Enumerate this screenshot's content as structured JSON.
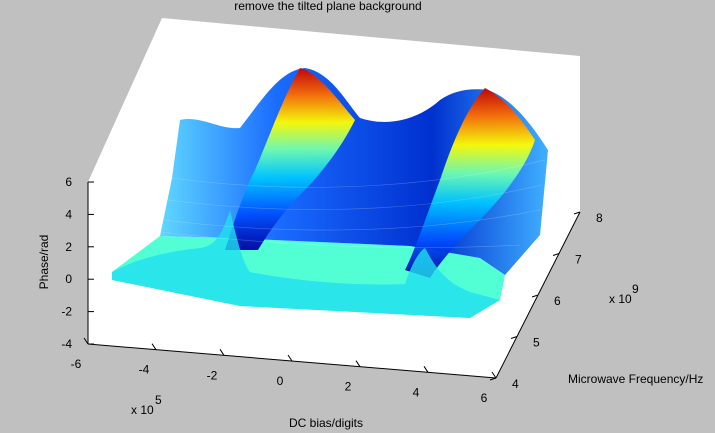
{
  "chart_data": {
    "type": "surface3d",
    "title": "remove the tilted plane background",
    "xlabel": "DC bias/digits",
    "x_exponent": "x 10",
    "x_exponent_power": "5",
    "ylabel": "Microwave Frequency/Hz",
    "y_exponent": "x 10",
    "y_exponent_power": "9",
    "zlabel": "Phase/rad",
    "xlim": [
      -6,
      6
    ],
    "ylim": [
      4,
      8
    ],
    "zlim": [
      -4,
      6
    ],
    "x_ticks": [
      "-6",
      "-4",
      "-2",
      "0",
      "2",
      "4",
      "6"
    ],
    "y_ticks": [
      "4",
      "5",
      "6",
      "7",
      "8"
    ],
    "z_ticks": [
      "-4",
      "-2",
      "0",
      "2",
      "4",
      "6"
    ],
    "colormap": "jet",
    "series": [
      {
        "x": [
          -5.4,
          -3,
          -1.5,
          -1,
          -0.5,
          0,
          1.5,
          3,
          3.5,
          4,
          4.5,
          5.4
        ],
        "y_range": [
          4.1,
          7.8
        ],
        "z_min": -0.3,
        "z_max": 6.2
      }
    ]
  }
}
